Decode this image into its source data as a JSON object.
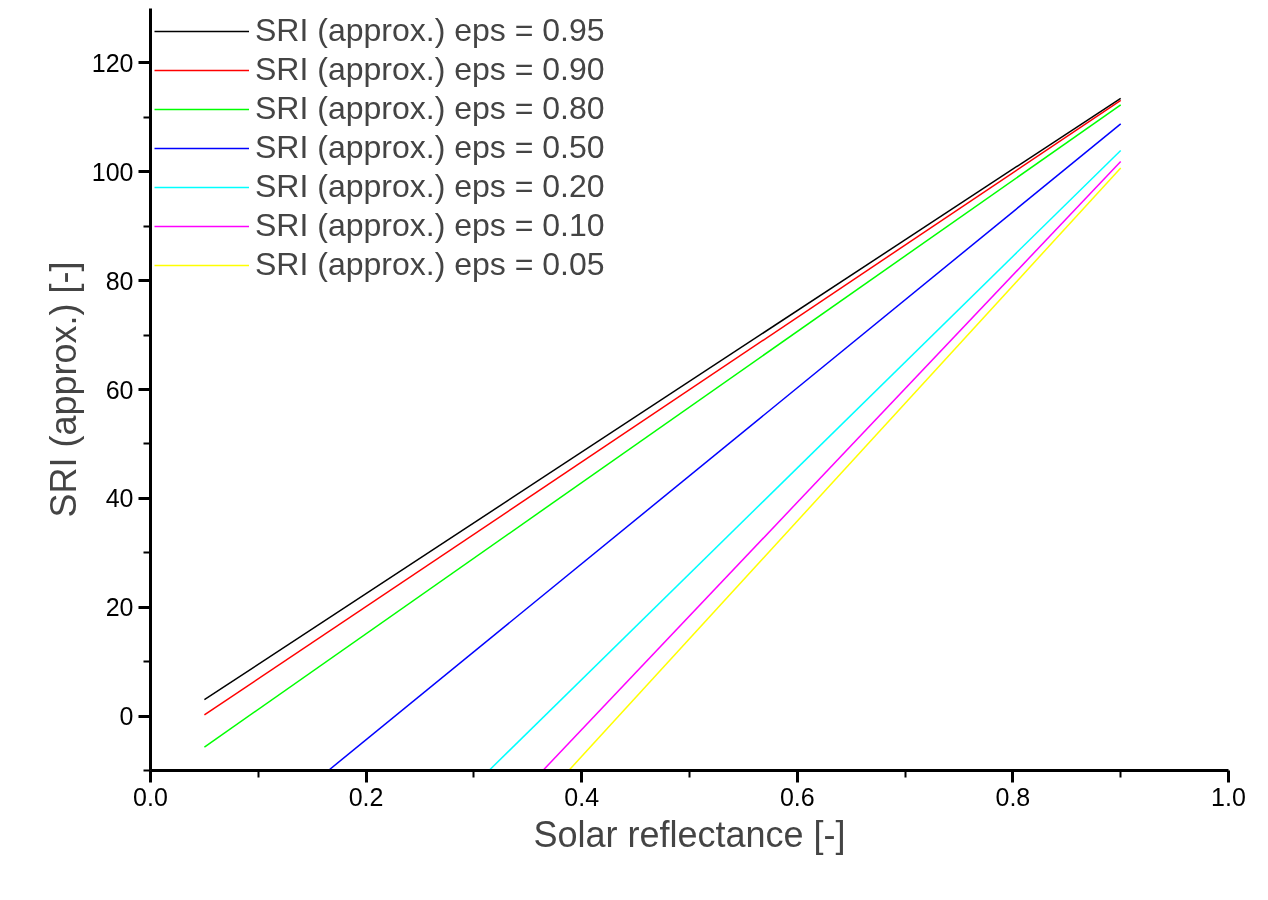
{
  "chart_data": {
    "type": "line",
    "xlabel": "Solar reflectance [-]",
    "ylabel": "SRI (approx.) [-]",
    "xlim": [
      0,
      1
    ],
    "ylim": [
      -10,
      130
    ],
    "xticks": [
      {
        "value": 0,
        "label": "0.0"
      },
      {
        "value": 0.1,
        "label": null
      },
      0.2,
      {
        "value": 0.3,
        "label": null
      },
      0.4,
      {
        "value": 0.5,
        "label": null
      },
      0.6,
      {
        "value": 0.7,
        "label": null
      },
      0.8,
      {
        "value": 0.9,
        "label": null
      },
      {
        "value": 1,
        "label": "1.0"
      }
    ],
    "yticks": [
      {
        "value": -10,
        "label": null
      },
      0,
      {
        "value": 10,
        "label": null
      },
      20,
      {
        "value": 30,
        "label": null
      },
      40,
      {
        "value": 50,
        "label": null
      },
      60,
      {
        "value": 70,
        "label": null
      },
      80,
      {
        "value": 90,
        "label": null
      },
      100,
      {
        "value": 110,
        "label": null
      },
      120
    ],
    "grid": false,
    "legend": "top left",
    "marker": "none",
    "line_style": "solid",
    "series": [
      {
        "name": "SRI (approx.) eps = 0.95",
        "color": "#000000",
        "x": [
          0.05,
          0.9
        ],
        "values": [
          3.0,
          113.5
        ]
      },
      {
        "name": "SRI (approx.) eps = 0.90",
        "color": "#ff0000",
        "x": [
          0.05,
          0.9
        ],
        "values": [
          0.2,
          113.1
        ]
      },
      {
        "name": "SRI (approx.) eps = 0.80",
        "color": "#00ff00",
        "x": [
          0.05,
          0.9
        ],
        "values": [
          -5.7,
          112.3
        ]
      },
      {
        "name": "SRI (approx.) eps = 0.50",
        "color": "#0000ff",
        "x": [
          0.165,
          0.9
        ],
        "values": [
          -10,
          108.8
        ]
      },
      {
        "name": "SRI (approx.) eps = 0.20",
        "color": "#00ffff",
        "x": [
          0.314,
          0.9
        ],
        "values": [
          -10,
          103.9
        ]
      },
      {
        "name": "SRI (approx.) eps = 0.10",
        "color": "#ff00ff",
        "x": [
          0.364,
          0.9
        ],
        "values": [
          -10,
          101.9
        ]
      },
      {
        "name": "SRI (approx.) eps = 0.05",
        "color": "#ffff00",
        "x": [
          0.388,
          0.9
        ],
        "values": [
          -10,
          100.7
        ]
      }
    ]
  }
}
